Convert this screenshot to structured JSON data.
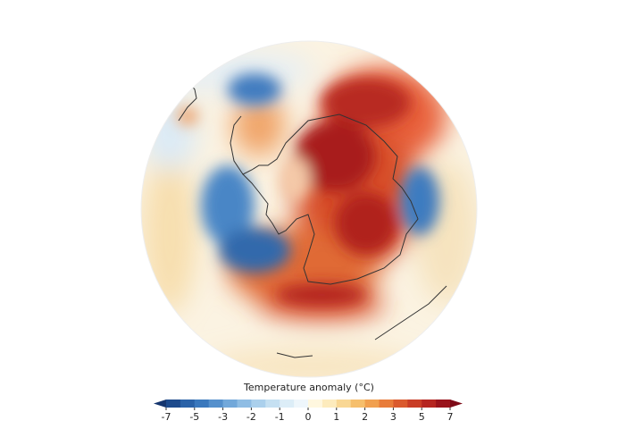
{
  "colorbar": {
    "title": "Temperature anomaly (°C)",
    "ticks": [
      -7,
      -5,
      -3,
      -2,
      -1,
      0,
      1,
      2,
      3,
      5,
      7
    ],
    "colors": [
      "#1d4a8c",
      "#2a62a8",
      "#3a78bd",
      "#5590cc",
      "#72a8da",
      "#8fbde4",
      "#abd0ec",
      "#c5e0f2",
      "#dcedf7",
      "#eef6fb",
      "#fff7df",
      "#fdebbd",
      "#f9d794",
      "#f6bf6c",
      "#f1a04f",
      "#e87c3a",
      "#da5a2e",
      "#c93d26",
      "#b52520",
      "#99131b"
    ],
    "under_color": "#15356e",
    "over_color": "#7d0a17"
  }
}
